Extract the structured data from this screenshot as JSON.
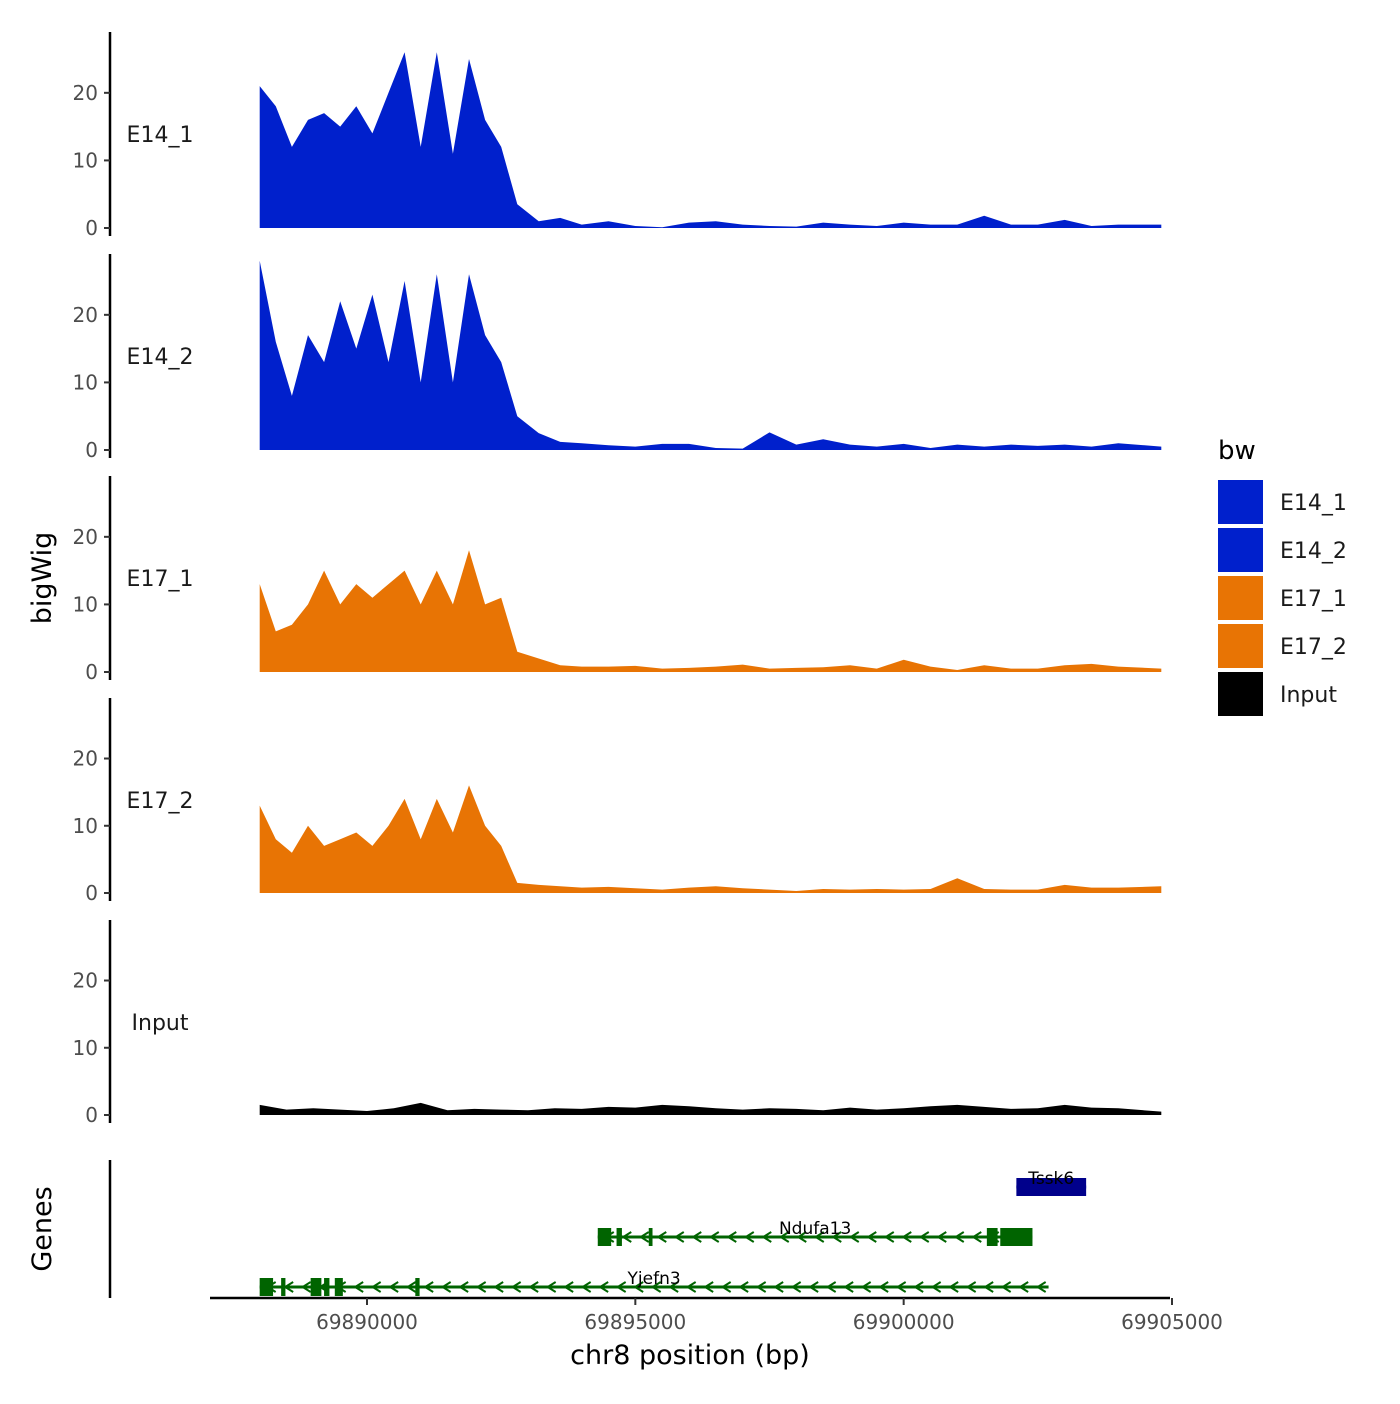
{
  "chart_data": {
    "type": "area",
    "xlabel": "chr8 position (bp)",
    "ylabel": "bigWig",
    "genes_label": "Genes",
    "xlim": [
      69886800,
      69905000
    ],
    "ylim": [
      0,
      29
    ],
    "x_ticks": [
      {
        "value": 69890000,
        "label": "69890000"
      },
      {
        "value": 69895000,
        "label": "69895000"
      },
      {
        "value": 69900000,
        "label": "69900000"
      },
      {
        "value": 69905000,
        "label": "69905000"
      }
    ],
    "y_ticks": [
      {
        "value": 0,
        "label": "0"
      },
      {
        "value": 10,
        "label": "10"
      },
      {
        "value": 20,
        "label": "20"
      }
    ],
    "legend": {
      "title": "bw",
      "entries": [
        {
          "label": "E14_1",
          "color": "#0020CC"
        },
        {
          "label": "E14_2",
          "color": "#0020CC"
        },
        {
          "label": "E17_1",
          "color": "#E87404"
        },
        {
          "label": "E17_2",
          "color": "#E87404"
        },
        {
          "label": "Input",
          "color": "#000000"
        }
      ]
    },
    "series": [
      {
        "name": "E14_1",
        "color": "#0020CC",
        "x": [
          69888000,
          69888300,
          69888600,
          69888900,
          69889200,
          69889500,
          69889800,
          69890100,
          69890400,
          69890700,
          69891000,
          69891300,
          69891600,
          69891900,
          69892200,
          69892500,
          69892800,
          69893200,
          69893600,
          69894000,
          69894500,
          69895000,
          69895500,
          69896000,
          69896500,
          69897000,
          69897500,
          69898000,
          69898500,
          69899000,
          69899500,
          69900000,
          69900500,
          69901000,
          69901500,
          69902000,
          69902500,
          69903000,
          69903500,
          69904000,
          69904800
        ],
        "values": [
          21,
          18,
          12,
          16,
          17,
          15,
          18,
          14,
          20,
          26,
          12,
          26,
          11,
          25,
          16,
          12,
          3.5,
          1,
          1.5,
          0.5,
          1,
          0.3,
          0.1,
          0.8,
          1,
          0.5,
          0.3,
          0.2,
          0.8,
          0.5,
          0.3,
          0.8,
          0.5,
          0.5,
          1.8,
          0.5,
          0.5,
          1.2,
          0.3,
          0.5,
          0.5
        ]
      },
      {
        "name": "E14_2",
        "color": "#0020CC",
        "x": [
          69888000,
          69888300,
          69888600,
          69888900,
          69889200,
          69889500,
          69889800,
          69890100,
          69890400,
          69890700,
          69891000,
          69891300,
          69891600,
          69891900,
          69892200,
          69892500,
          69892800,
          69893200,
          69893600,
          69894000,
          69894500,
          69895000,
          69895500,
          69896000,
          69896500,
          69897000,
          69897500,
          69898000,
          69898500,
          69899000,
          69899500,
          69900000,
          69900500,
          69901000,
          69901500,
          69902000,
          69902500,
          69903000,
          69903500,
          69904000,
          69904800
        ],
        "values": [
          28,
          16,
          8,
          17,
          13,
          22,
          15,
          23,
          13,
          25,
          10,
          26,
          10,
          26,
          17,
          13,
          5,
          2.5,
          1.2,
          1,
          0.7,
          0.5,
          0.9,
          0.9,
          0.3,
          0.2,
          2.6,
          0.8,
          1.6,
          0.8,
          0.5,
          0.9,
          0.3,
          0.8,
          0.5,
          0.8,
          0.6,
          0.8,
          0.5,
          1,
          0.5
        ]
      },
      {
        "name": "E17_1",
        "color": "#E87404",
        "x": [
          69888000,
          69888300,
          69888600,
          69888900,
          69889200,
          69889500,
          69889800,
          69890100,
          69890400,
          69890700,
          69891000,
          69891300,
          69891600,
          69891900,
          69892200,
          69892500,
          69892800,
          69893200,
          69893600,
          69894000,
          69894500,
          69895000,
          69895500,
          69896000,
          69896500,
          69897000,
          69897500,
          69898000,
          69898500,
          69899000,
          69899500,
          69900000,
          69900500,
          69901000,
          69901500,
          69902000,
          69902500,
          69903000,
          69903500,
          69904000,
          69904800
        ],
        "values": [
          13,
          6,
          7,
          10,
          15,
          10,
          13,
          11,
          13,
          15,
          10,
          15,
          10,
          18,
          10,
          11,
          3,
          2,
          1,
          0.8,
          0.8,
          0.9,
          0.5,
          0.6,
          0.8,
          1.1,
          0.5,
          0.6,
          0.7,
          1,
          0.5,
          1.8,
          0.8,
          0.3,
          1,
          0.5,
          0.5,
          1,
          1.2,
          0.8,
          0.5
        ]
      },
      {
        "name": "E17_2",
        "color": "#E87404",
        "x": [
          69888000,
          69888300,
          69888600,
          69888900,
          69889200,
          69889500,
          69889800,
          69890100,
          69890400,
          69890700,
          69891000,
          69891300,
          69891600,
          69891900,
          69892200,
          69892500,
          69892800,
          69893200,
          69893600,
          69894000,
          69894500,
          69895000,
          69895500,
          69896000,
          69896500,
          69897000,
          69897500,
          69898000,
          69898500,
          69899000,
          69899500,
          69900000,
          69900500,
          69901000,
          69901500,
          69902000,
          69902500,
          69903000,
          69903500,
          69904000,
          69904800
        ],
        "values": [
          13,
          8,
          6,
          10,
          7,
          8,
          9,
          7,
          10,
          14,
          8,
          14,
          9,
          16,
          10,
          7,
          1.5,
          1.2,
          1,
          0.8,
          0.9,
          0.7,
          0.5,
          0.8,
          1,
          0.7,
          0.5,
          0.3,
          0.6,
          0.5,
          0.6,
          0.5,
          0.6,
          2.2,
          0.6,
          0.5,
          0.5,
          1.2,
          0.8,
          0.8,
          1
        ]
      },
      {
        "name": "Input",
        "color": "#000000",
        "x": [
          69888000,
          69888500,
          69889000,
          69889500,
          69890000,
          69890500,
          69891000,
          69891500,
          69892000,
          69892500,
          69893000,
          69893500,
          69894000,
          69894500,
          69895000,
          69895500,
          69896000,
          69896500,
          69897000,
          69897500,
          69898000,
          69898500,
          69899000,
          69899500,
          69900000,
          69900500,
          69901000,
          69901500,
          69902000,
          69902500,
          69903000,
          69903500,
          69904000,
          69904800
        ],
        "values": [
          1.5,
          0.8,
          1,
          0.8,
          0.6,
          1,
          1.8,
          0.7,
          0.9,
          0.8,
          0.7,
          1,
          0.9,
          1.2,
          1.1,
          1.5,
          1.3,
          1,
          0.8,
          1,
          0.9,
          0.7,
          1.1,
          0.8,
          1,
          1.3,
          1.5,
          1.2,
          0.9,
          1,
          1.5,
          1.1,
          1,
          0.5
        ]
      }
    ],
    "genes": [
      {
        "name": "Tssk6",
        "color": "#00008B",
        "start": 69902100,
        "end": 69903400,
        "strand": "+",
        "exons": [
          [
            69902100,
            69903400
          ]
        ]
      },
      {
        "name": "Ndufa13",
        "color": "#006400",
        "start": 69894300,
        "end": 69902400,
        "strand": "-",
        "exons": [
          [
            69894300,
            69894550
          ],
          [
            69894650,
            69894750
          ],
          [
            69895250,
            69895320
          ],
          [
            69901550,
            69901750
          ],
          [
            69901800,
            69902400
          ]
        ]
      },
      {
        "name": "Yjefn3",
        "color": "#006400",
        "start": 69888000,
        "end": 69902700,
        "strand": "-",
        "exons": [
          [
            69888000,
            69888250
          ],
          [
            69888400,
            69888480
          ],
          [
            69888950,
            69889150
          ],
          [
            69889200,
            69889300
          ],
          [
            69889400,
            69889550
          ],
          [
            69890900,
            69890980
          ]
        ]
      }
    ]
  }
}
